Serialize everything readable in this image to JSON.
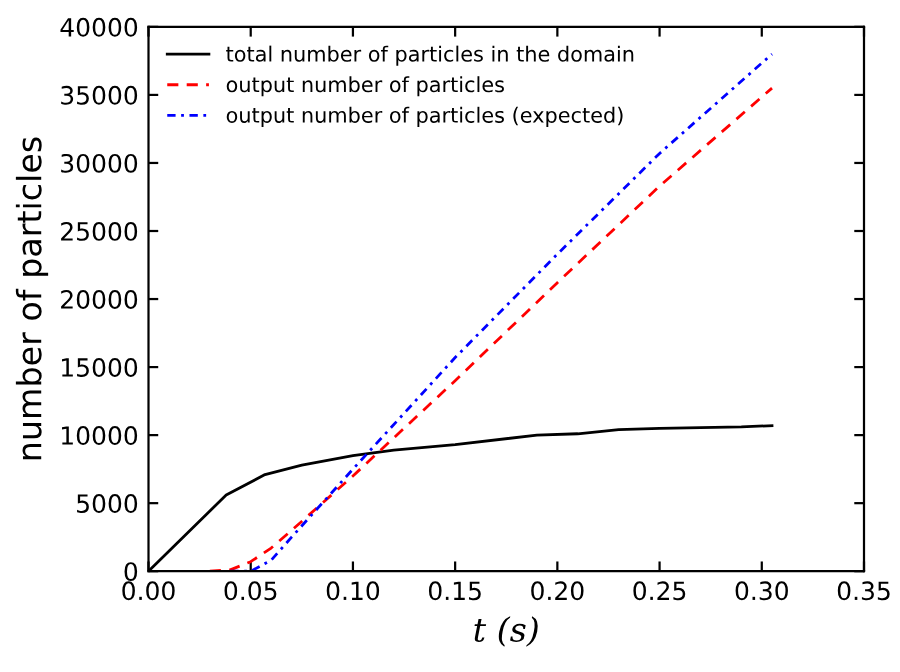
{
  "chart_data": {
    "type": "line",
    "xlabel": "t (s)",
    "ylabel": "number of particles",
    "xlim": [
      0,
      0.35
    ],
    "ylim": [
      0,
      40000
    ],
    "xticks": [
      {
        "value": 0,
        "label": "0.00"
      },
      {
        "value": 0.05,
        "label": "0.05"
      },
      {
        "value": 0.1,
        "label": "0.10"
      },
      {
        "value": 0.15,
        "label": "0.15"
      },
      {
        "value": 0.2,
        "label": "0.20"
      },
      {
        "value": 0.25,
        "label": "0.25"
      },
      {
        "value": 0.3,
        "label": "0.30"
      },
      {
        "value": 0.35,
        "label": "0.35"
      }
    ],
    "yticks": [
      0,
      5000,
      10000,
      15000,
      20000,
      25000,
      30000,
      35000,
      40000
    ],
    "grid": false,
    "legend": "top left",
    "series": [
      {
        "name": "total number of particles in the domain",
        "color": "#000000",
        "line_style": "solid",
        "x": [
          0,
          0.038,
          0.057,
          0.075,
          0.1,
          0.12,
          0.15,
          0.19,
          0.21,
          0.23,
          0.25,
          0.29,
          0.305
        ],
        "values": [
          0,
          5600,
          7100,
          7800,
          8500,
          8900,
          9300,
          10000,
          10100,
          10400,
          10500,
          10600,
          10700
        ]
      },
      {
        "name": "output number of particles",
        "color": "#ff0000",
        "line_style": "dashed",
        "x": [
          0.03,
          0.04,
          0.05,
          0.06,
          0.07,
          0.1,
          0.15,
          0.2,
          0.25,
          0.305
        ],
        "values": [
          0,
          100,
          700,
          1700,
          3000,
          7000,
          14000,
          21200,
          28300,
          35500
        ]
      },
      {
        "name": "output number of particles (expected)",
        "color": "#0000ff",
        "line_style": "dashdot",
        "x": [
          0.04,
          0.05,
          0.06,
          0.07,
          0.1,
          0.15,
          0.2,
          0.25,
          0.305
        ],
        "values": [
          0,
          0,
          800,
          2500,
          7500,
          15700,
          23300,
          30700,
          38000
        ]
      }
    ]
  }
}
